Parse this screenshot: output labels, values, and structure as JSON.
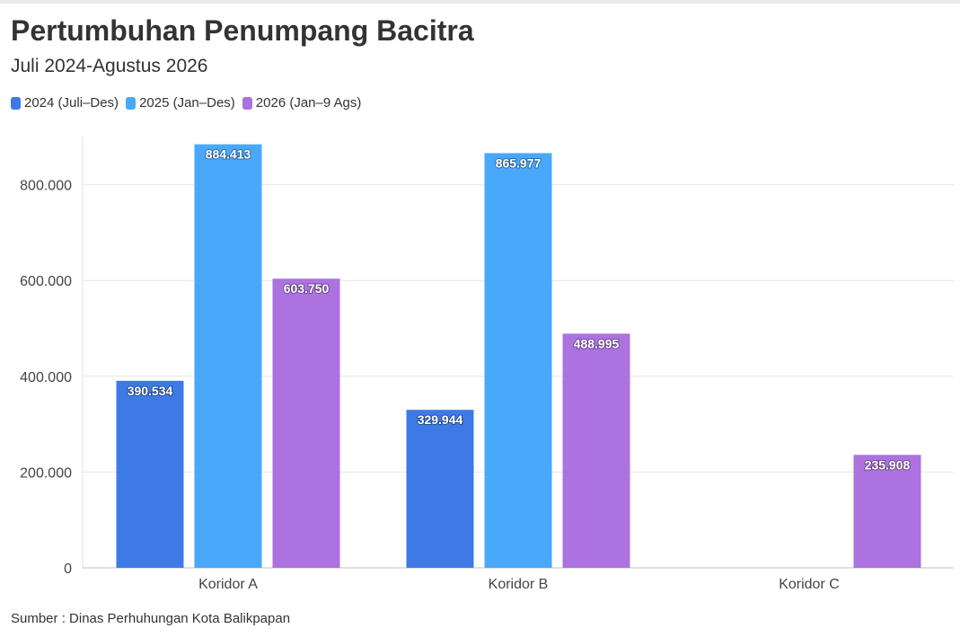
{
  "chart_data": {
    "type": "bar",
    "title": "Pertumbuhan Penumpang Bacitra",
    "subtitle": "Juli 2024-Agustus 2026",
    "categories": [
      "Koridor A",
      "Koridor B",
      "Koridor C"
    ],
    "series": [
      {
        "name": "2024 (Juli–Des)",
        "color": "#3e7ae6",
        "values": [
          390534,
          329944,
          null
        ],
        "labels": [
          "390.534",
          "329.944",
          ""
        ]
      },
      {
        "name": "2025 (Jan–Des)",
        "color": "#4aa8fb",
        "values": [
          884413,
          865977,
          null
        ],
        "labels": [
          "884.413",
          "865.977",
          ""
        ]
      },
      {
        "name": "2026 (Jan–9 Ags)",
        "color": "#ab72e0",
        "values": [
          603750,
          488995,
          235908
        ],
        "labels": [
          "603.750",
          "488.995",
          "235.908"
        ]
      }
    ],
    "y_ticks": [
      0,
      200000,
      400000,
      600000,
      800000
    ],
    "y_tick_labels": [
      "0",
      "200.000",
      "400.000",
      "600.000",
      "800.000"
    ],
    "ylim": [
      0,
      900000
    ],
    "grid": true,
    "legend_position": "top-left",
    "source": "Sumber : Dinas Perhuhungan Kota Balikpapan"
  }
}
